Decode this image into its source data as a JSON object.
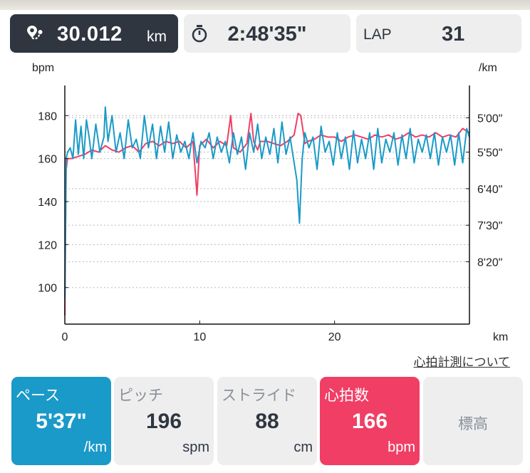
{
  "summary": {
    "distance_value": "30.012",
    "distance_unit": "km",
    "time_value": "2:48'35\"",
    "lap_label": "LAP",
    "lap_value": "31"
  },
  "link_text": "心拍計測について",
  "metrics": {
    "pace": {
      "label": "ペース",
      "value": "5'37\"",
      "unit": "/km"
    },
    "cadence": {
      "label": "ピッチ",
      "value": "196",
      "unit": "spm"
    },
    "stride": {
      "label": "ストライド",
      "value": "88",
      "unit": "cm"
    },
    "hr": {
      "label": "心拍数",
      "value": "166",
      "unit": "bpm"
    },
    "elevation": {
      "label": "標高"
    }
  },
  "colors": {
    "dark": "#2f3640",
    "pace": "#1a9ac8",
    "heart_rate": "#f03e65",
    "card_bg": "#eeeeef"
  },
  "chart_data": {
    "type": "line",
    "left_axis_label": "bpm",
    "right_axis_label": "/km",
    "x_label": "km",
    "xlim": [
      0,
      30
    ],
    "x_ticks": [
      0,
      10,
      20
    ],
    "left_ylim": [
      83,
      194
    ],
    "left_ticks": [
      100,
      120,
      140,
      160,
      180
    ],
    "right_ticks": [
      {
        "label": "5'00\"",
        "bpm_equiv": 179
      },
      {
        "label": "5'50\"",
        "bpm_equiv": 163
      },
      {
        "label": "6'40\"",
        "bpm_equiv": 146
      },
      {
        "label": "7'30\"",
        "bpm_equiv": 129
      },
      {
        "label": "8'20\"",
        "bpm_equiv": 112
      }
    ],
    "grid": "dotted horizontal",
    "series": [
      {
        "axis": "left",
        "color": "#f03e65",
        "x": [
          0,
          0.1,
          0.2,
          0.5,
          1,
          1.5,
          2,
          2.5,
          3,
          3.5,
          4,
          4.5,
          5,
          5.5,
          6,
          6.5,
          7,
          7.5,
          8,
          8.5,
          9,
          9.5,
          9.8,
          10,
          10.5,
          11,
          11.5,
          12,
          12.3,
          12.5,
          13,
          13.5,
          13.8,
          14,
          14.3,
          14.5,
          15,
          15.5,
          16,
          16.5,
          17,
          17.3,
          17.5,
          17.8,
          18,
          18.5,
          19,
          19.5,
          20,
          20.5,
          21,
          21.5,
          22,
          22.5,
          23,
          23.5,
          24,
          24.5,
          25,
          25.5,
          26,
          26.5,
          27,
          27.5,
          28,
          28.5,
          29,
          29.5,
          30
        ],
        "y": [
          87,
          155,
          160,
          160,
          161,
          162,
          164,
          163,
          166,
          164,
          163,
          165,
          166,
          163,
          167,
          168,
          166,
          168,
          167,
          168,
          165,
          168,
          143,
          166,
          169,
          165,
          168,
          166,
          180,
          165,
          163,
          167,
          181,
          168,
          164,
          168,
          168,
          167,
          166,
          168,
          171,
          181,
          180,
          167,
          168,
          169,
          171,
          170,
          170,
          168,
          170,
          171,
          170,
          169,
          171,
          170,
          171,
          169,
          170,
          172,
          170,
          171,
          170,
          172,
          170,
          171,
          170,
          174,
          172
        ]
      },
      {
        "axis": "right",
        "color": "#1a9ac8",
        "x": [
          0,
          0.1,
          0.2,
          0.4,
          0.6,
          0.8,
          1,
          1.2,
          1.4,
          1.6,
          1.8,
          2,
          2.3,
          2.6,
          2.9,
          3,
          3.2,
          3.5,
          3.8,
          4.1,
          4.4,
          4.7,
          5,
          5.3,
          5.6,
          5.9,
          6.2,
          6.5,
          6.8,
          7.1,
          7.4,
          7.7,
          8,
          8.3,
          8.6,
          8.9,
          9.2,
          9.5,
          9.8,
          10.1,
          10.4,
          10.7,
          11,
          11.3,
          11.6,
          11.9,
          12.2,
          12.5,
          12.8,
          13.1,
          13.4,
          13.7,
          14,
          14.3,
          14.6,
          14.9,
          15.2,
          15.5,
          15.8,
          16.1,
          16.4,
          16.7,
          17,
          17.2,
          17.4,
          17.6,
          17.8,
          18.1,
          18.4,
          18.7,
          19,
          19.3,
          19.6,
          19.9,
          20.2,
          20.5,
          20.8,
          21.1,
          21.4,
          21.7,
          22,
          22.3,
          22.6,
          22.9,
          23.2,
          23.5,
          23.8,
          24.1,
          24.4,
          24.7,
          25,
          25.3,
          25.6,
          25.9,
          26.2,
          26.5,
          26.8,
          27.1,
          27.4,
          27.7,
          28,
          28.3,
          28.6,
          28.9,
          29.2,
          29.5,
          29.8,
          30
        ],
        "y": [
          95,
          160,
          163,
          165,
          160,
          178,
          162,
          175,
          160,
          178,
          170,
          160,
          176,
          163,
          170,
          184,
          168,
          180,
          163,
          172,
          160,
          178,
          165,
          169,
          160,
          180,
          165,
          176,
          160,
          175,
          163,
          177,
          160,
          171,
          163,
          168,
          160,
          172,
          158,
          168,
          165,
          172,
          160,
          170,
          163,
          168,
          158,
          172,
          162,
          170,
          155,
          172,
          163,
          176,
          160,
          170,
          162,
          174,
          158,
          177,
          162,
          170,
          158,
          150,
          130,
          160,
          172,
          165,
          170,
          155,
          175,
          163,
          168,
          157,
          172,
          160,
          170,
          155,
          173,
          158,
          169,
          160,
          172,
          155,
          174,
          158,
          169,
          163,
          172,
          157,
          171,
          160,
          174,
          158,
          169,
          163,
          171,
          160,
          172,
          157,
          170,
          163,
          171,
          157,
          172,
          158,
          174,
          170
        ]
      }
    ]
  }
}
